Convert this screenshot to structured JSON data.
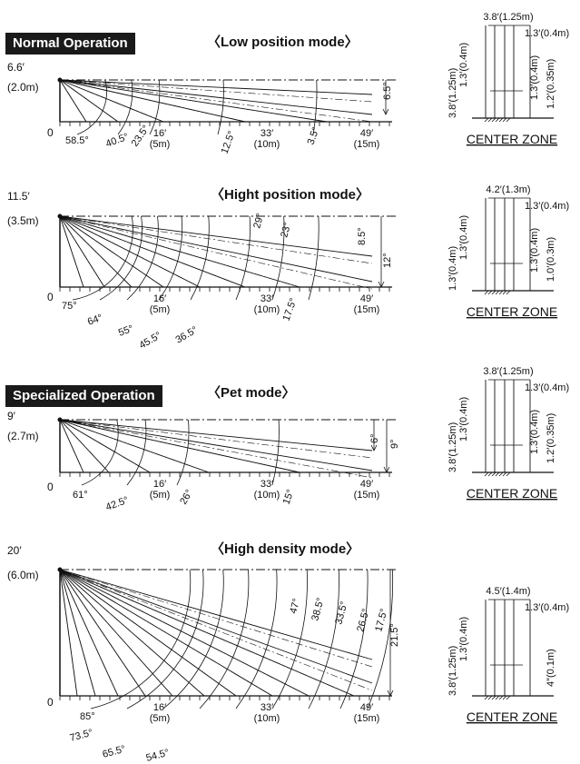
{
  "sections": {
    "normal": "Normal Operation",
    "specialized": "Specialized Operation"
  },
  "panels": [
    {
      "id": "low",
      "title": "〈Low position mode〉",
      "height_top": "6.6′",
      "height_bottom": "(2.0m)",
      "zero": "0",
      "angles": [
        "58.5°",
        "40.5°",
        "23.5°",
        "12.5°",
        "3.5°"
      ],
      "right_angles": [
        "6.5°"
      ],
      "distances": [
        {
          "ft": "16′",
          "m": "(5m)"
        },
        {
          "ft": "33′",
          "m": "(10m)"
        },
        {
          "ft": "49′",
          "m": "(15m)"
        }
      ]
    },
    {
      "id": "hight",
      "title": "〈Hight position mode〉",
      "height_top": "11.5′",
      "height_bottom": "(3.5m)",
      "zero": "0",
      "angles": [
        "75°",
        "64°",
        "55°",
        "45.5°",
        "36.5°",
        "17.5°",
        "29°",
        "23°"
      ],
      "right_angles": [
        "8.5°",
        "12°"
      ],
      "distances": [
        {
          "ft": "16′",
          "m": "(5m)"
        },
        {
          "ft": "33′",
          "m": "(10m)"
        },
        {
          "ft": "49′",
          "m": "(15m)"
        }
      ]
    },
    {
      "id": "pet",
      "title": "〈Pet mode〉",
      "height_top": "9′",
      "height_bottom": "(2.7m)",
      "zero": "0",
      "angles": [
        "61°",
        "42.5°",
        "26°",
        "15°"
      ],
      "right_angles": [
        "6°",
        "9°"
      ],
      "distances": [
        {
          "ft": "16′",
          "m": "(5m)"
        },
        {
          "ft": "33′",
          "m": "(10m)"
        },
        {
          "ft": "49′",
          "m": "(15m)"
        }
      ]
    },
    {
      "id": "density",
      "title": "〈High density mode〉",
      "height_top": "20′",
      "height_bottom": "(6.0m)",
      "zero": "0",
      "angles": [
        "85°",
        "73.5°",
        "65.5°",
        "54.5°",
        "47°",
        "38.5°",
        "33.5°",
        "26.5°",
        "17.5°"
      ],
      "right_angles": [
        "21.5°"
      ],
      "distances": [
        {
          "ft": "16′",
          "m": "(5m)"
        },
        {
          "ft": "33′",
          "m": "(10m)"
        },
        {
          "ft": "49′",
          "m": "(15m)"
        }
      ]
    }
  ],
  "center_zones": [
    {
      "width": "3.8′(1.25m)",
      "right": "1.3′(0.4m)",
      "left_top": "1.3′(0.4m)",
      "left_bottom": "3.8′(1.25m)",
      "mid": "1.3′(0.4m)",
      "far": "1.2′(0.35m)",
      "caption": "CENTER ZONE"
    },
    {
      "width": "4.2′(1.3m)",
      "right": "1.3′(0.4m)",
      "left_top": "1.3′(0.4m)",
      "left_bottom": "1.3′(0.4m)",
      "mid": "1.3′(0.4m)",
      "far": "1.0′(0.3m)",
      "caption": "CENTER ZONE"
    },
    {
      "width": "3.8′(1.25m)",
      "right": "1.3′(0.4m)",
      "left_top": "1.3′(0.4m)",
      "left_bottom": "3.8′(1.25m)",
      "mid": "1.3′(0.4m)",
      "far": "1.2′(0.35m)",
      "caption": "CENTER ZONE"
    },
    {
      "width": "4.5′(1.4m)",
      "right": "1.3′(0.4m)",
      "left_top": "1.3′(0.4m)",
      "left_bottom": "3.8′(1.25m)",
      "far": "4″(0.1m)",
      "caption": "CENTER ZONE"
    }
  ]
}
